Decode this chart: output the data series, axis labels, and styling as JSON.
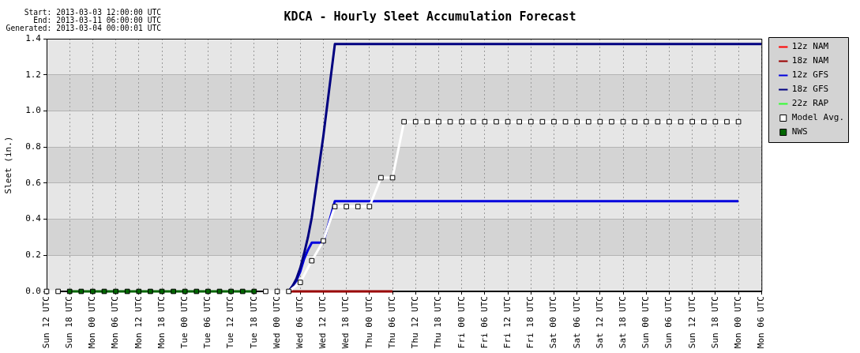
{
  "chart_data": {
    "type": "line",
    "title": "KDCA - Hourly Sleet Accumulation Forecast",
    "ylabel": "Sleet (in.)",
    "annotations": [
      "Start: 2013-03-03 12:00:00 UTC",
      "End: 2013-03-11 06:00:00 UTC",
      "Generated: 2013-03-04 00:00:01 UTC"
    ],
    "xlim": [
      "2013-03-03T12:00",
      "2013-03-11T06:00"
    ],
    "xticks": [
      {
        "value": "2013-03-03T12:00",
        "label": "Sun 12 UTC"
      },
      {
        "value": "2013-03-03T18:00",
        "label": "Sun 18 UTC"
      },
      {
        "value": "2013-03-04T00:00",
        "label": "Mon 00 UTC"
      },
      {
        "value": "2013-03-04T06:00",
        "label": "Mon 06 UTC"
      },
      {
        "value": "2013-03-04T12:00",
        "label": "Mon 12 UTC"
      },
      {
        "value": "2013-03-04T18:00",
        "label": "Mon 18 UTC"
      },
      {
        "value": "2013-03-05T00:00",
        "label": "Tue 00 UTC"
      },
      {
        "value": "2013-03-05T06:00",
        "label": "Tue 06 UTC"
      },
      {
        "value": "2013-03-05T12:00",
        "label": "Tue 12 UTC"
      },
      {
        "value": "2013-03-05T18:00",
        "label": "Tue 18 UTC"
      },
      {
        "value": "2013-03-06T00:00",
        "label": "Wed 00 UTC"
      },
      {
        "value": "2013-03-06T06:00",
        "label": "Wed 06 UTC"
      },
      {
        "value": "2013-03-06T12:00",
        "label": "Wed 12 UTC"
      },
      {
        "value": "2013-03-06T18:00",
        "label": "Wed 18 UTC"
      },
      {
        "value": "2013-03-07T00:00",
        "label": "Thu 00 UTC"
      },
      {
        "value": "2013-03-07T06:00",
        "label": "Thu 06 UTC"
      },
      {
        "value": "2013-03-07T12:00",
        "label": "Thu 12 UTC"
      },
      {
        "value": "2013-03-07T18:00",
        "label": "Thu 18 UTC"
      },
      {
        "value": "2013-03-08T00:00",
        "label": "Fri 00 UTC"
      },
      {
        "value": "2013-03-08T06:00",
        "label": "Fri 06 UTC"
      },
      {
        "value": "2013-03-08T12:00",
        "label": "Fri 12 UTC"
      },
      {
        "value": "2013-03-08T18:00",
        "label": "Fri 18 UTC"
      },
      {
        "value": "2013-03-09T00:00",
        "label": "Sat 00 UTC"
      },
      {
        "value": "2013-03-09T06:00",
        "label": "Sat 06 UTC"
      },
      {
        "value": "2013-03-09T12:00",
        "label": "Sat 12 UTC"
      },
      {
        "value": "2013-03-09T18:00",
        "label": "Sat 18 UTC"
      },
      {
        "value": "2013-03-10T00:00",
        "label": "Sun 00 UTC"
      },
      {
        "value": "2013-03-10T06:00",
        "label": "Sun 06 UTC"
      },
      {
        "value": "2013-03-10T12:00",
        "label": "Sun 12 UTC"
      },
      {
        "value": "2013-03-10T18:00",
        "label": "Sun 18 UTC"
      },
      {
        "value": "2013-03-11T00:00",
        "label": "Mon 00 UTC"
      },
      {
        "value": "2013-03-11T06:00",
        "label": "Mon 06 UTC"
      }
    ],
    "ylim": [
      0,
      1.4
    ],
    "yticks": [
      {
        "value": 0,
        "label": "0.0"
      },
      {
        "value": 0.2,
        "label": "0.2"
      },
      {
        "value": 0.4,
        "label": "0.4"
      },
      {
        "value": 0.6,
        "label": "0.6"
      },
      {
        "value": 0.8,
        "label": "0.8"
      },
      {
        "value": 1.0,
        "label": "1.0"
      },
      {
        "value": 1.2,
        "label": "1.2"
      },
      {
        "value": 1.4,
        "label": "1.4"
      }
    ],
    "bands": [
      {
        "axis": "y",
        "from": 0.2,
        "to": 0.4,
        "color": "#d4d4d4"
      },
      {
        "axis": "y",
        "from": 0.6,
        "to": 0.8,
        "color": "#d4d4d4"
      },
      {
        "axis": "y",
        "from": 1.0,
        "to": 1.2,
        "color": "#d4d4d4"
      }
    ],
    "grid": true,
    "legend": "top right",
    "series": [
      {
        "name": "12z NAM",
        "color": "#ff0000"
      },
      {
        "name": "18z NAM",
        "color": "#990000",
        "x": [
          "2013-03-06T03:00",
          "2013-03-07T06:00"
        ],
        "values": [
          0,
          0
        ]
      },
      {
        "name": "12z GFS",
        "color": "#0000dd",
        "x": [
          "2013-03-06T03:00",
          "2013-03-06T04:00",
          "2013-03-06T05:00",
          "2013-03-06T06:00",
          "2013-03-06T07:00",
          "2013-03-06T08:00",
          "2013-03-06T09:00",
          "2013-03-06T12:00",
          "2013-03-06T15:00",
          "2013-03-11T00:00"
        ],
        "values": [
          0,
          0.03,
          0.06,
          0.11,
          0.18,
          0.23,
          0.27,
          0.27,
          0.5,
          0.5
        ]
      },
      {
        "name": "18z GFS",
        "color": "#000080",
        "x": [
          "2013-03-06T03:00",
          "2013-03-06T04:00",
          "2013-03-06T05:00",
          "2013-03-06T06:00",
          "2013-03-06T07:00",
          "2013-03-06T08:00",
          "2013-03-06T09:00",
          "2013-03-06T12:00",
          "2013-03-06T15:00",
          "2013-03-11T06:00"
        ],
        "values": [
          0,
          0.03,
          0.07,
          0.13,
          0.21,
          0.3,
          0.41,
          0.86,
          1.37,
          1.37
        ]
      },
      {
        "name": "22z RAP",
        "color": "#33ff33"
      },
      {
        "name": "Model Avg.",
        "color": "#ffffff",
        "marker": "square",
        "x": [
          "2013-03-03T12:00",
          "2013-03-03T15:00",
          "2013-03-03T18:00",
          "2013-03-03T21:00",
          "2013-03-04T00:00",
          "2013-03-04T03:00",
          "2013-03-04T06:00",
          "2013-03-04T09:00",
          "2013-03-04T12:00",
          "2013-03-04T15:00",
          "2013-03-04T18:00",
          "2013-03-04T21:00",
          "2013-03-05T00:00",
          "2013-03-05T03:00",
          "2013-03-05T06:00",
          "2013-03-05T09:00",
          "2013-03-05T12:00",
          "2013-03-05T15:00",
          "2013-03-05T18:00",
          "2013-03-05T21:00",
          "2013-03-06T00:00",
          "2013-03-06T03:00",
          "2013-03-06T06:00",
          "2013-03-06T09:00",
          "2013-03-06T12:00",
          "2013-03-06T15:00",
          "2013-03-06T18:00",
          "2013-03-06T21:00",
          "2013-03-07T00:00",
          "2013-03-07T03:00",
          "2013-03-07T06:00",
          "2013-03-07T09:00",
          "2013-03-07T12:00",
          "2013-03-07T15:00",
          "2013-03-07T18:00",
          "2013-03-07T21:00",
          "2013-03-08T00:00",
          "2013-03-08T03:00",
          "2013-03-08T06:00",
          "2013-03-08T09:00",
          "2013-03-08T12:00",
          "2013-03-08T15:00",
          "2013-03-08T18:00",
          "2013-03-08T21:00",
          "2013-03-09T00:00",
          "2013-03-09T03:00",
          "2013-03-09T06:00",
          "2013-03-09T09:00",
          "2013-03-09T12:00",
          "2013-03-09T15:00",
          "2013-03-09T18:00",
          "2013-03-09T21:00",
          "2013-03-10T00:00",
          "2013-03-10T03:00",
          "2013-03-10T06:00",
          "2013-03-10T09:00",
          "2013-03-10T12:00",
          "2013-03-10T15:00",
          "2013-03-10T18:00",
          "2013-03-10T21:00",
          "2013-03-11T00:00"
        ],
        "values": [
          0,
          0,
          null,
          null,
          null,
          null,
          null,
          null,
          null,
          null,
          null,
          null,
          null,
          null,
          null,
          null,
          null,
          null,
          null,
          0,
          0,
          0,
          0.05,
          0.17,
          0.28,
          0.47,
          0.47,
          0.47,
          0.47,
          0.63,
          0.63,
          0.94,
          0.94,
          0.94,
          0.94,
          0.94,
          0.94,
          0.94,
          0.94,
          0.94,
          0.94,
          0.94,
          0.94,
          0.94,
          0.94,
          0.94,
          0.94,
          0.94,
          0.94,
          0.94,
          0.94,
          0.94,
          0.94,
          0.94,
          0.94,
          0.94,
          0.94,
          0.94,
          0.94,
          0.94,
          0.94
        ]
      },
      {
        "name": "NWS",
        "color": "#006600",
        "marker": "square",
        "x": [
          "2013-03-03T18:00",
          "2013-03-03T21:00",
          "2013-03-04T00:00",
          "2013-03-04T03:00",
          "2013-03-04T06:00",
          "2013-03-04T09:00",
          "2013-03-04T12:00",
          "2013-03-04T15:00",
          "2013-03-04T18:00",
          "2013-03-04T21:00",
          "2013-03-05T00:00",
          "2013-03-05T03:00",
          "2013-03-05T06:00",
          "2013-03-05T09:00",
          "2013-03-05T12:00",
          "2013-03-05T15:00",
          "2013-03-05T18:00"
        ],
        "values": [
          0,
          0,
          0,
          0,
          0,
          0,
          0,
          0,
          0,
          0,
          0,
          0,
          0,
          0,
          0,
          0,
          0
        ]
      }
    ]
  }
}
